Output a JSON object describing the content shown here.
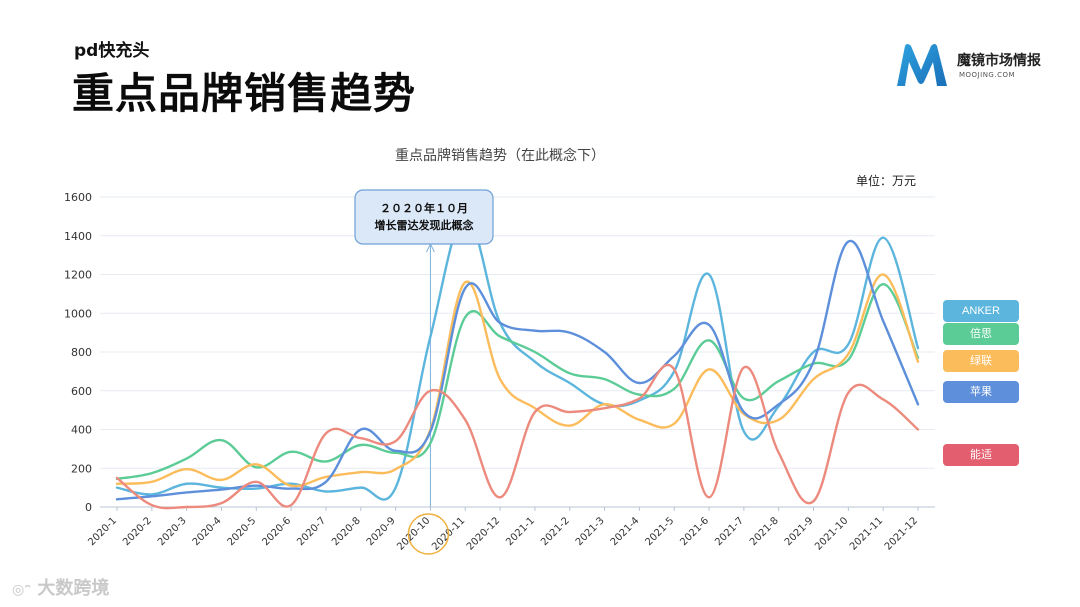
{
  "header": {
    "subtitle": "pd快充头",
    "title": "重点品牌销售趋势"
  },
  "logo": {
    "name": "魔镜市场情报",
    "sub": "MOOJING.COM"
  },
  "watermark": "大数跨境",
  "chart_data": {
    "type": "line",
    "title": "重点品牌销售趋势（在此概念下）",
    "unit": "单位：万元",
    "ylim": [
      0,
      1600
    ],
    "yticks": [
      0,
      200,
      400,
      600,
      800,
      1000,
      1200,
      1400,
      1600
    ],
    "grid": true,
    "legend_position": "right",
    "categories": [
      "2020-1",
      "2020-2",
      "2020-3",
      "2020-4",
      "2020-5",
      "2020-6",
      "2020-7",
      "2020-8",
      "2020-9",
      "2020-10",
      "2020-11",
      "2020-12",
      "2021-1",
      "2021-2",
      "2021-3",
      "2021-4",
      "2021-5",
      "2021-6",
      "2021-7",
      "2021-8",
      "2021-9",
      "2021-10",
      "2021-11",
      "2021-12"
    ],
    "series": [
      {
        "name": "ANKER",
        "color": "#5cb5dd",
        "values": [
          100,
          65,
          120,
          100,
          95,
          120,
          80,
          100,
          100,
          880,
          1500,
          950,
          750,
          640,
          530,
          550,
          700,
          1200,
          390,
          520,
          800,
          840,
          1390,
          820
        ]
      },
      {
        "name": "倍思",
        "color": "#5ccc96",
        "values": [
          145,
          175,
          250,
          345,
          205,
          285,
          235,
          320,
          280,
          330,
          980,
          880,
          800,
          690,
          660,
          580,
          610,
          860,
          560,
          650,
          740,
          760,
          1150,
          770
        ]
      },
      {
        "name": "绿联",
        "color": "#fbbc5c",
        "values": [
          120,
          130,
          195,
          140,
          220,
          110,
          155,
          180,
          195,
          400,
          1160,
          660,
          510,
          420,
          530,
          450,
          430,
          710,
          480,
          450,
          660,
          790,
          1200,
          750
        ]
      },
      {
        "name": "苹果",
        "color": "#5d8fdb",
        "values": [
          40,
          55,
          75,
          90,
          110,
          95,
          130,
          400,
          290,
          390,
          1130,
          950,
          910,
          900,
          800,
          640,
          780,
          940,
          490,
          530,
          750,
          1370,
          960,
          530
        ]
      },
      {
        "name": "能适",
        "color": "#ec8a7e",
        "values": [
          150,
          10,
          0,
          20,
          130,
          10,
          380,
          355,
          340,
          600,
          450,
          50,
          490,
          490,
          510,
          560,
          710,
          50,
          720,
          280,
          30,
          590,
          555,
          400
        ]
      }
    ],
    "annotation": {
      "line1": "２０２０年１０月",
      "line2": "增长雷达发现此概念",
      "category": "2020-10"
    },
    "extra_legend": {
      "name": "能适",
      "color": "#e35e6e"
    }
  }
}
